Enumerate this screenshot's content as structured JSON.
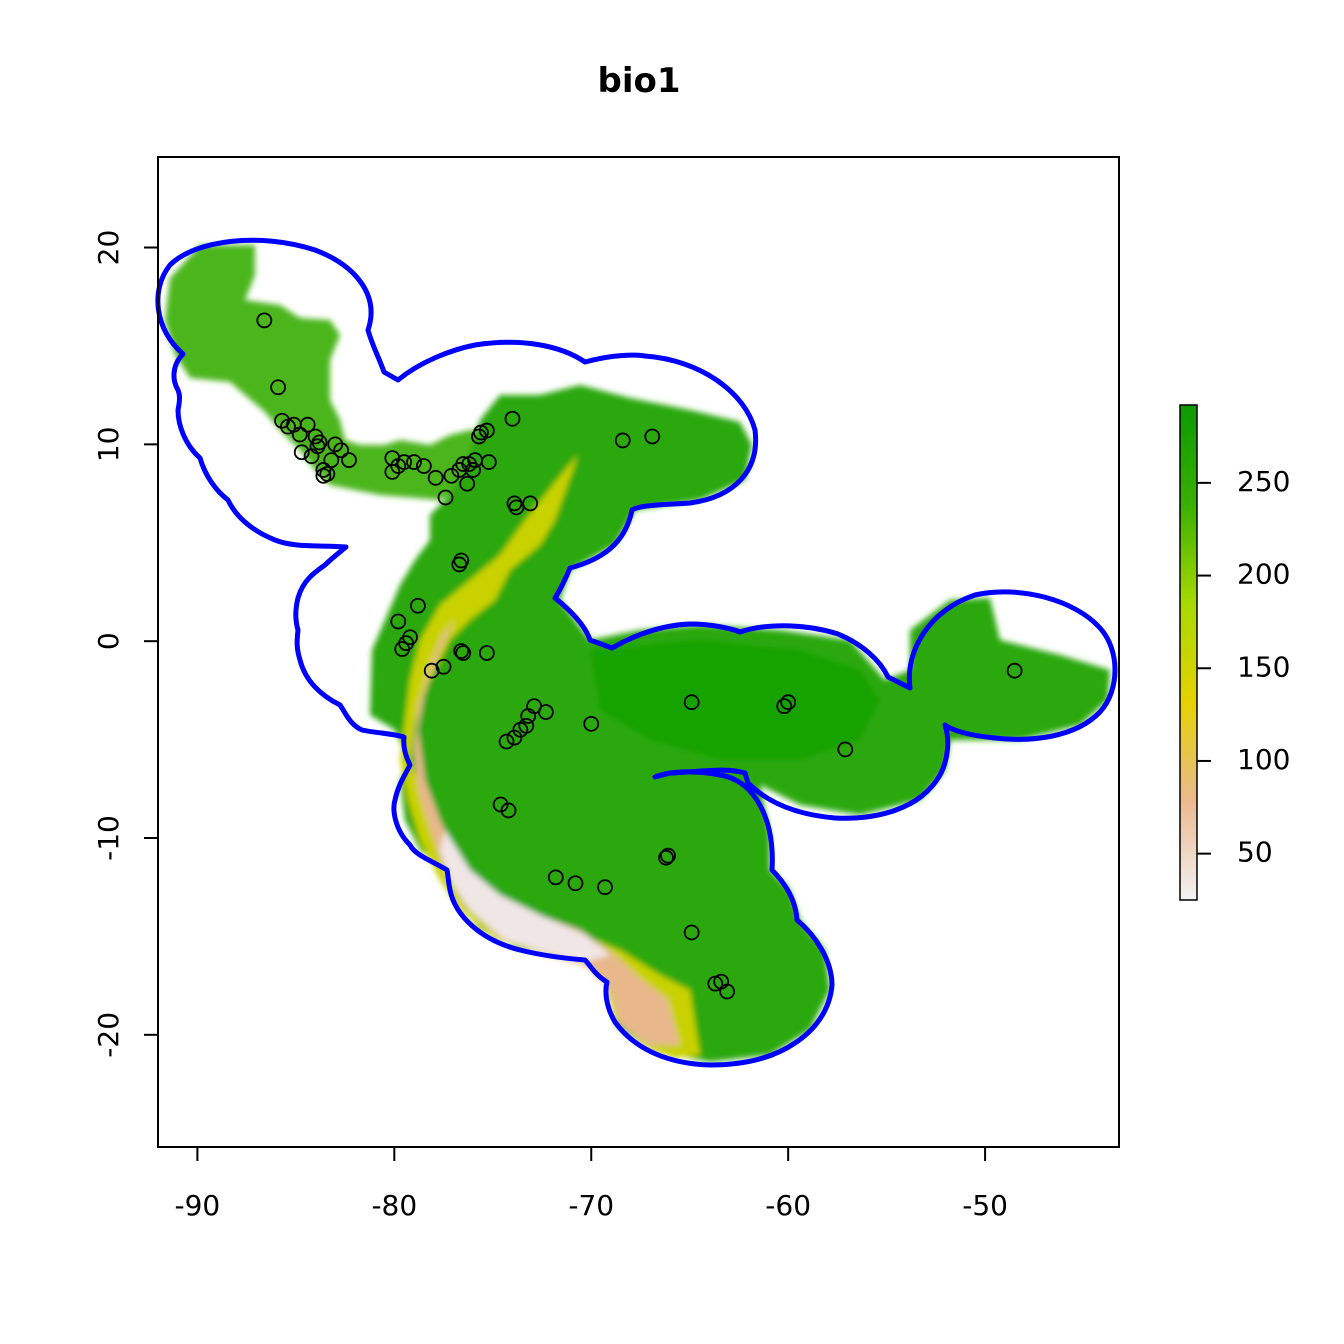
{
  "title": "bio1",
  "map": {
    "x_range": [
      -92,
      -43.2
    ],
    "y_range": [
      -25.7,
      24.6
    ],
    "x_ticks": [
      -90,
      -80,
      -70,
      -60,
      -50
    ],
    "y_ticks": [
      20,
      10,
      0,
      -10,
      -20
    ],
    "x_tick_labels": [
      "-90",
      "-80",
      "-70",
      "-60",
      "-50"
    ],
    "y_tick_labels": [
      "20",
      "10",
      "0",
      "-10",
      "-20"
    ],
    "grid": false,
    "boundary_color": "#0000ff",
    "point_color": "#000000"
  },
  "legend": {
    "placement": "right",
    "min": 25,
    "max": 292,
    "ticks": [
      50,
      100,
      150,
      200,
      250
    ],
    "tick_labels": [
      "50",
      "100",
      "150",
      "200",
      "250"
    ],
    "colors": [
      "#f2f2f2",
      "#ebb98f",
      "#e6d100",
      "#a6d900",
      "#39b000",
      "#0a9a00"
    ]
  },
  "occurrence_points": [
    [
      -86.6,
      16.3
    ],
    [
      -85.9,
      12.9
    ],
    [
      -85.7,
      11.2
    ],
    [
      -85.4,
      10.9
    ],
    [
      -85.1,
      11.0
    ],
    [
      -84.8,
      10.5
    ],
    [
      -84.7,
      9.6
    ],
    [
      -84.4,
      11.0
    ],
    [
      -84.2,
      9.4
    ],
    [
      -84.0,
      10.4
    ],
    [
      -83.9,
      9.9
    ],
    [
      -83.8,
      10.1
    ],
    [
      -83.6,
      8.7
    ],
    [
      -83.4,
      8.5
    ],
    [
      -83.2,
      9.2
    ],
    [
      -83.0,
      10.0
    ],
    [
      -82.7,
      9.7
    ],
    [
      -82.3,
      9.2
    ],
    [
      -83.6,
      8.4
    ],
    [
      -80.1,
      9.3
    ],
    [
      -80.1,
      8.6
    ],
    [
      -79.8,
      8.9
    ],
    [
      -79.5,
      9.1
    ],
    [
      -79.0,
      9.1
    ],
    [
      -78.5,
      8.9
    ],
    [
      -77.9,
      8.3
    ],
    [
      -77.4,
      7.3
    ],
    [
      -77.1,
      8.4
    ],
    [
      -76.7,
      8.7
    ],
    [
      -76.5,
      9.0
    ],
    [
      -76.3,
      8.0
    ],
    [
      -76.2,
      9.0
    ],
    [
      -76.0,
      8.7
    ],
    [
      -75.9,
      9.2
    ],
    [
      -75.7,
      10.4
    ],
    [
      -75.6,
      10.6
    ],
    [
      -75.3,
      10.7
    ],
    [
      -75.2,
      9.1
    ],
    [
      -74.0,
      11.3
    ],
    [
      -73.9,
      7.0
    ],
    [
      -73.8,
      6.8
    ],
    [
      -73.1,
      7.0
    ],
    [
      -68.4,
      10.2
    ],
    [
      -66.9,
      10.4
    ],
    [
      -76.6,
      4.1
    ],
    [
      -76.7,
      3.9
    ],
    [
      -78.8,
      1.8
    ],
    [
      -79.8,
      1.0
    ],
    [
      -79.6,
      -0.4
    ],
    [
      -79.4,
      -0.1
    ],
    [
      -79.2,
      0.2
    ],
    [
      -78.1,
      -1.5
    ],
    [
      -77.5,
      -1.3
    ],
    [
      -76.6,
      -0.5
    ],
    [
      -76.5,
      -0.6
    ],
    [
      -75.3,
      -0.6
    ],
    [
      -74.3,
      -5.1
    ],
    [
      -73.9,
      -4.9
    ],
    [
      -73.6,
      -4.5
    ],
    [
      -73.3,
      -4.3
    ],
    [
      -73.2,
      -3.8
    ],
    [
      -72.9,
      -3.3
    ],
    [
      -72.3,
      -3.6
    ],
    [
      -70.0,
      -4.2
    ],
    [
      -64.9,
      -3.1
    ],
    [
      -60.2,
      -3.3
    ],
    [
      -60.0,
      -3.1
    ],
    [
      -57.1,
      -5.5
    ],
    [
      -48.5,
      -1.5
    ],
    [
      -74.6,
      -8.3
    ],
    [
      -74.2,
      -8.6
    ],
    [
      -66.2,
      -11.0
    ],
    [
      -66.1,
      -10.9
    ],
    [
      -71.8,
      -12.0
    ],
    [
      -70.8,
      -12.3
    ],
    [
      -69.3,
      -12.5
    ],
    [
      -64.9,
      -14.8
    ],
    [
      -63.7,
      -17.4
    ],
    [
      -63.4,
      -17.3
    ],
    [
      -63.1,
      -17.8
    ]
  ]
}
